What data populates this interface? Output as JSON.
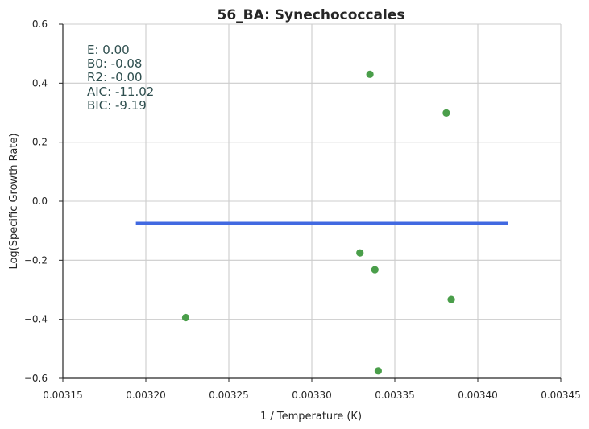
{
  "chart_data": {
    "type": "scatter",
    "title": "56_BA: Synechococcales",
    "xlabel": "1 / Temperature (K)",
    "ylabel": "Log(Specific Growth Rate)",
    "xlim": [
      0.00315,
      0.00345
    ],
    "ylim": [
      -0.6,
      0.6
    ],
    "x_ticks": [
      "0.00315",
      "0.00320",
      "0.00325",
      "0.00330",
      "0.00335",
      "0.00340",
      "0.00345"
    ],
    "y_ticks": [
      "0.6",
      "0.4",
      "0.2",
      "0.0",
      "−0.2",
      "−0.4",
      "−0.6"
    ],
    "x_tick_values": [
      0.00315,
      0.0032,
      0.00325,
      0.0033,
      0.00335,
      0.0034,
      0.00345
    ],
    "y_tick_values": [
      0.6,
      0.4,
      0.2,
      0.0,
      -0.2,
      -0.4,
      -0.6
    ],
    "grid": true,
    "points": [
      {
        "x": 0.003224,
        "y": -0.394
      },
      {
        "x": 0.003329,
        "y": -0.175
      },
      {
        "x": 0.003335,
        "y": 0.43
      },
      {
        "x": 0.003338,
        "y": -0.232
      },
      {
        "x": 0.00334,
        "y": -0.575
      },
      {
        "x": 0.003381,
        "y": 0.299
      },
      {
        "x": 0.003384,
        "y": -0.333
      }
    ],
    "fit_line": {
      "x": [
        0.003194,
        0.003418
      ],
      "y": [
        -0.075,
        -0.075
      ]
    },
    "point_color": "#4a9e4a",
    "line_color": "#4169e1",
    "stats": [
      "E:  0.00",
      "B0:  -0.08",
      "R2:  -0.00",
      "AIC: -11.02",
      "BIC: -9.19"
    ]
  }
}
